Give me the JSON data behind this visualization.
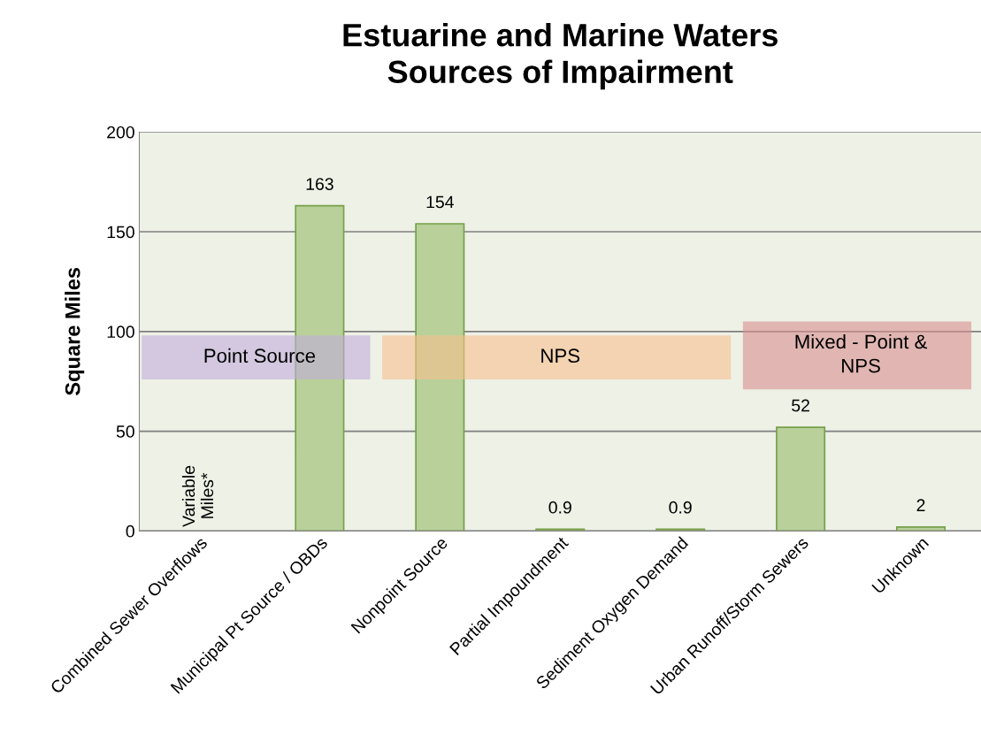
{
  "chart_data": {
    "type": "bar",
    "title": "Estuarine and Marine Waters\nSources of Impairment",
    "ylabel": "Square Miles",
    "categories": [
      "Combined Sewer Overflows",
      "Municipal Pt Source / OBDs",
      "Nonpoint Source",
      "Partial Impoundment",
      "Sediment Oxygen Demand",
      "Urban Runoff/Storm Sewers",
      "Unknown"
    ],
    "values": [
      null,
      163,
      154,
      0.9,
      0.9,
      52,
      2
    ],
    "color": "#b9d09a",
    "data_labels": true,
    "ylim": [
      0,
      200
    ],
    "yticks": [
      0,
      50,
      100,
      150,
      200
    ],
    "grid": "y",
    "annotations": [
      "Variable\nMiles*"
    ],
    "bands": [
      {
        "axis": "x",
        "from": "Combined Sewer Overflows",
        "to": "Municipal Pt Source / OBDs",
        "label": "Point Source",
        "color": "#c2aedb"
      },
      {
        "axis": "x",
        "from": "Nonpoint Source",
        "to": "Sediment Oxygen Demand",
        "label": "NPS",
        "color": "#f7c08e"
      },
      {
        "axis": "x",
        "from": "Urban Runoff/Storm Sewers",
        "to": "Unknown",
        "label": "Mixed - Point &\nNPS",
        "color": "#d98f8f"
      }
    ]
  }
}
